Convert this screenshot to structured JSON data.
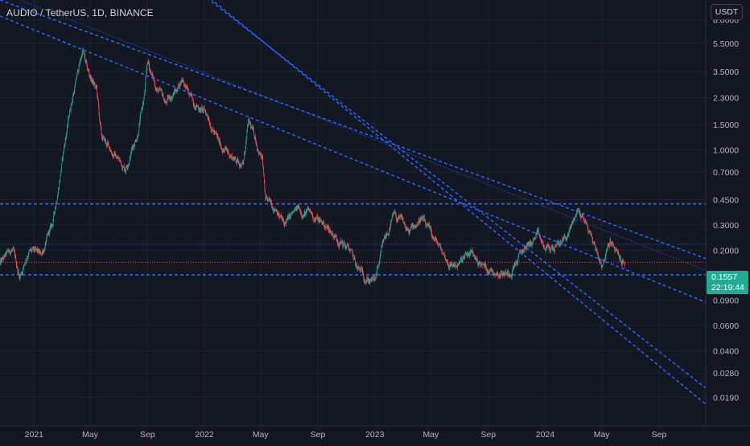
{
  "header": {
    "symbol_title": "AUDIO / TetherUS, 1D, BINANCE",
    "currency_button": "USDT"
  },
  "last_price": {
    "value": "0.1557",
    "countdown": "22:19:44",
    "color": "#22ab94"
  },
  "colors": {
    "background": "#131722",
    "up_candle": "#26a69a",
    "down_candle": "#ef5350",
    "trendline": "#2962ff",
    "axis_text": "#b2b5be"
  },
  "chart_data": {
    "type": "candlestick",
    "symbol": "AUDIO / TetherUS",
    "interval": "1D",
    "exchange": "BINANCE",
    "y_scale": "log",
    "ylim": [
      0.012,
      11
    ],
    "y_ticks": [
      "8.0000",
      "5.5000",
      "3.5000",
      "2.3000",
      "1.5000",
      "1.0000",
      "0.7000",
      "0.4500",
      "0.3000",
      "0.2000",
      "0.0900",
      "0.0600",
      "0.0400",
      "0.0280",
      "0.0190"
    ],
    "x_ticks": [
      "2021",
      "May",
      "Sep",
      "2022",
      "May",
      "Sep",
      "2023",
      "May",
      "Sep",
      "2024",
      "May",
      "Sep"
    ],
    "x_tick_dates": [
      "2021-01-01",
      "2021-05-01",
      "2021-09-01",
      "2022-01-01",
      "2022-05-01",
      "2022-09-01",
      "2023-01-01",
      "2023-05-01",
      "2023-09-01",
      "2024-01-01",
      "2024-05-01",
      "2024-09-01"
    ],
    "xlim": [
      "2020-10-20",
      "2024-12-10"
    ],
    "price_path": [
      [
        "2020-10-20",
        0.16
      ],
      [
        "2020-11-15",
        0.2
      ],
      [
        "2020-12-01",
        0.13
      ],
      [
        "2020-12-20",
        0.2
      ],
      [
        "2021-01-15",
        0.18
      ],
      [
        "2021-02-10",
        0.3
      ],
      [
        "2021-03-01",
        0.8
      ],
      [
        "2021-03-20",
        2.0
      ],
      [
        "2021-04-05",
        3.5
      ],
      [
        "2021-04-15",
        4.9
      ],
      [
        "2021-04-25",
        3.5
      ],
      [
        "2021-05-15",
        2.6
      ],
      [
        "2021-05-25",
        1.2
      ],
      [
        "2021-06-20",
        0.95
      ],
      [
        "2021-07-15",
        0.75
      ],
      [
        "2021-08-10",
        1.3
      ],
      [
        "2021-08-25",
        2.3
      ],
      [
        "2021-09-01",
        4.0
      ],
      [
        "2021-09-20",
        2.7
      ],
      [
        "2021-10-10",
        2.1
      ],
      [
        "2021-11-01",
        2.6
      ],
      [
        "2021-11-15",
        3.2
      ],
      [
        "2021-12-01",
        2.3
      ],
      [
        "2021-12-20",
        2.0
      ],
      [
        "2022-01-10",
        1.7
      ],
      [
        "2022-02-01",
        1.1
      ],
      [
        "2022-03-01",
        0.9
      ],
      [
        "2022-03-25",
        0.8
      ],
      [
        "2022-04-05",
        1.5
      ],
      [
        "2022-04-20",
        1.2
      ],
      [
        "2022-05-05",
        0.85
      ],
      [
        "2022-05-12",
        0.42
      ],
      [
        "2022-06-05",
        0.4
      ],
      [
        "2022-06-20",
        0.3
      ],
      [
        "2022-07-20",
        0.38
      ],
      [
        "2022-08-15",
        0.36
      ],
      [
        "2022-09-15",
        0.3
      ],
      [
        "2022-10-15",
        0.24
      ],
      [
        "2022-11-08",
        0.2
      ],
      [
        "2022-11-25",
        0.145
      ],
      [
        "2022-12-15",
        0.13
      ],
      [
        "2023-01-01",
        0.12
      ],
      [
        "2023-01-20",
        0.22
      ],
      [
        "2023-02-10",
        0.34
      ],
      [
        "2023-03-01",
        0.31
      ],
      [
        "2023-03-15",
        0.26
      ],
      [
        "2023-04-10",
        0.34
      ],
      [
        "2023-04-25",
        0.27
      ],
      [
        "2023-05-15",
        0.22
      ],
      [
        "2023-06-10",
        0.16
      ],
      [
        "2023-07-01",
        0.16
      ],
      [
        "2023-07-25",
        0.19
      ],
      [
        "2023-08-20",
        0.155
      ],
      [
        "2023-09-15",
        0.145
      ],
      [
        "2023-10-15",
        0.14
      ],
      [
        "2023-11-15",
        0.2
      ],
      [
        "2023-12-15",
        0.25
      ],
      [
        "2024-01-01",
        0.2
      ],
      [
        "2024-01-25",
        0.21
      ],
      [
        "2024-02-20",
        0.26
      ],
      [
        "2024-03-10",
        0.38
      ],
      [
        "2024-03-25",
        0.33
      ],
      [
        "2024-04-15",
        0.22
      ],
      [
        "2024-05-01",
        0.16
      ],
      [
        "2024-05-20",
        0.23
      ],
      [
        "2024-06-05",
        0.18
      ],
      [
        "2024-06-20",
        0.1557
      ]
    ],
    "horizontal_levels": [
      {
        "price": 0.42,
        "style": "dashed"
      },
      {
        "price": 0.135,
        "style": "dashed"
      },
      {
        "price": 0.22,
        "style": "dotted"
      },
      {
        "price": 0.165,
        "style": "dotted",
        "color": "#ef5350"
      }
    ],
    "trendlines": [
      {
        "style": "dashed",
        "points": [
          [
            "2020-10-20",
            11
          ],
          [
            "2024-12-10",
            0.175
          ]
        ]
      },
      {
        "style": "dotted",
        "points": [
          [
            "2020-10-20",
            12.5
          ],
          [
            "2024-12-10",
            0.145
          ]
        ]
      },
      {
        "style": "dashed",
        "points": [
          [
            "2020-10-20",
            8.5
          ],
          [
            "2024-12-10",
            0.087
          ]
        ]
      },
      {
        "style": "dashed",
        "points": [
          [
            "2021-11-20",
            15
          ],
          [
            "2024-12-10",
            0.022
          ]
        ]
      },
      {
        "style": "dashed",
        "points": [
          [
            "2021-11-28",
            15
          ],
          [
            "2024-12-10",
            0.017
          ]
        ]
      }
    ]
  }
}
